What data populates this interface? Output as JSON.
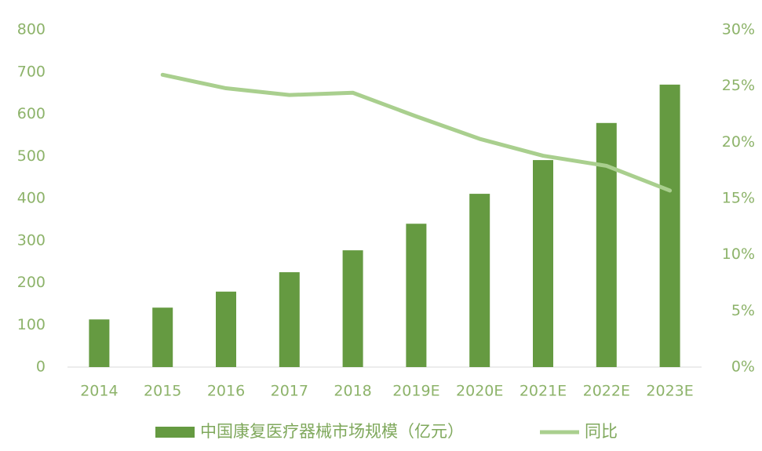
{
  "chart_data": {
    "type": "bar",
    "categories": [
      "2014",
      "2015",
      "2016",
      "2017",
      "2018",
      "2019E",
      "2020E",
      "2021E",
      "2022E",
      "2023E"
    ],
    "series": [
      {
        "name": "中国康复医疗器械市场规模（亿元）",
        "color": "#659a41",
        "type": "bar",
        "values": [
          113,
          141,
          179,
          225,
          277,
          340,
          411,
          491,
          579,
          670
        ]
      },
      {
        "name": "同比",
        "color": "#a9cf8e",
        "type": "line",
        "axis": "y2",
        "values": [
          null,
          26.0,
          24.8,
          24.2,
          24.4,
          22.3,
          20.3,
          18.8,
          17.9,
          15.7
        ]
      }
    ],
    "ylim": [
      0,
      800
    ],
    "yticks": [
      0,
      100,
      200,
      300,
      400,
      500,
      600,
      700,
      800
    ],
    "y2lim": [
      0,
      30
    ],
    "y2ticks": [
      {
        "value": 0,
        "label": "0%"
      },
      {
        "value": 5,
        "label": "5%"
      },
      {
        "value": 10,
        "label": "10%"
      },
      {
        "value": 15,
        "label": "15%"
      },
      {
        "value": 20,
        "label": "20%"
      },
      {
        "value": 25,
        "label": "25%"
      },
      {
        "value": 30,
        "label": "30%"
      }
    ],
    "legend": "bottom"
  }
}
